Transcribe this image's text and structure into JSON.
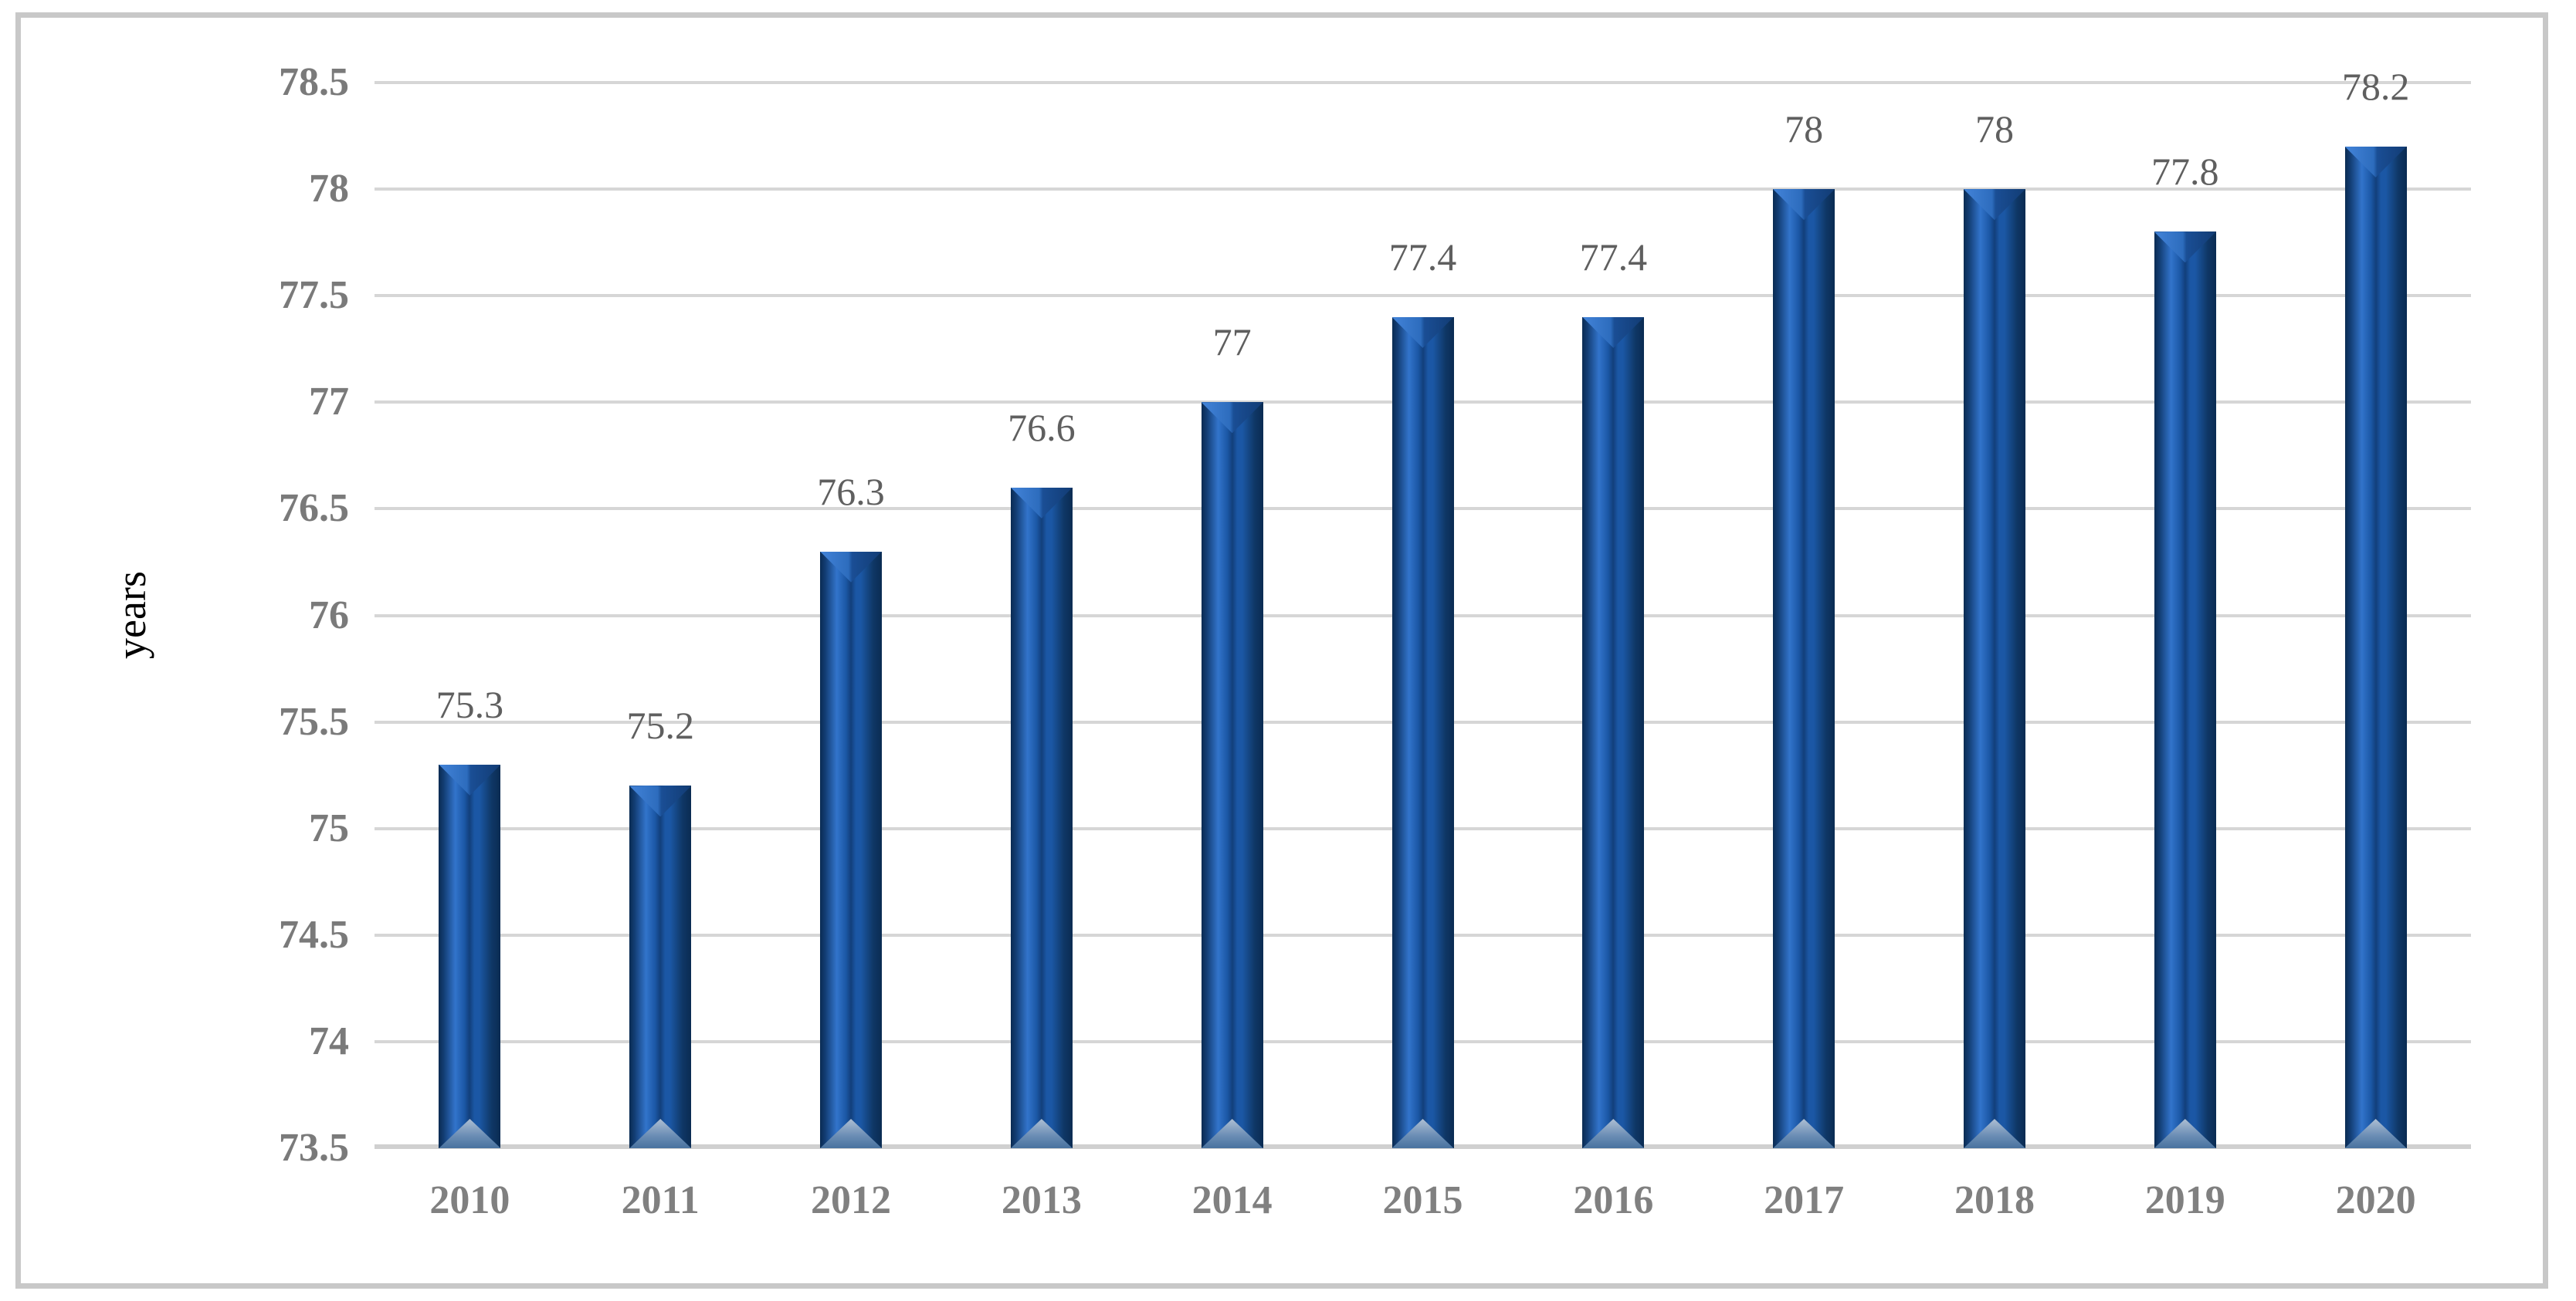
{
  "chart_data": {
    "type": "bar",
    "title": "",
    "xlabel": "",
    "ylabel": "years",
    "categories": [
      "2010",
      "2011",
      "2012",
      "2013",
      "2014",
      "2015",
      "2016",
      "2017",
      "2018",
      "2019",
      "2020"
    ],
    "values": [
      75.3,
      75.2,
      76.3,
      76.6,
      77,
      77.4,
      77.4,
      78,
      78,
      77.8,
      78.2
    ],
    "value_labels": [
      "75.3",
      "75.2",
      "76.3",
      "76.6",
      "77",
      "77.4",
      "77.4",
      "78",
      "78",
      "77.8",
      "78.2"
    ],
    "ylim": [
      73.5,
      78.5
    ],
    "ytick_step": 0.5,
    "ytick_labels_top_to_bottom": [
      "78.5",
      "78",
      "77.5",
      "77",
      "76.5",
      "76",
      "75.5",
      "75",
      "74.5",
      "74",
      "73.5"
    ],
    "grid": true,
    "legend": "none",
    "bar_style": "3d-bevel-column"
  },
  "colors": {
    "background": "#ffffff",
    "frame_border": "#c8c8c8",
    "gridline": "#d6d6d6",
    "axis_line": "#d0d0d0",
    "tick_text": "#7a7a7a",
    "xlabel_text": "#808080",
    "datalabel_text": "#5f5f5f",
    "ylabel_text": "#000000",
    "bar_edge": "#0a2b52",
    "bar_body_dark": "#123c72",
    "bar_body_light": "#3274cb",
    "bar_body_mid": "#1b57a5",
    "bar_seam": "#123f7b",
    "bar_right_shade": "#0f3766",
    "facet_left_light": "#4384d9",
    "facet_left": "#2d6cbd",
    "facet_right": "#1a4e95",
    "facet_right_dark": "#123c74",
    "base_apex": "#aebfd3",
    "base_mid": "#6d8fb6",
    "base_side": "#48729f"
  }
}
